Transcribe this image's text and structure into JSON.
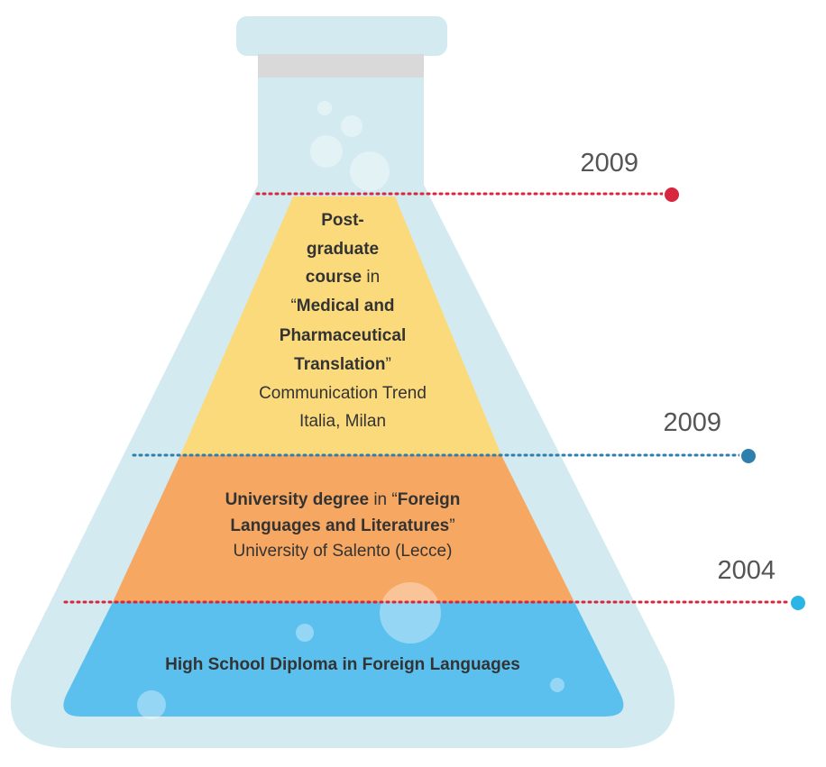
{
  "levels": [
    {
      "year": "2009",
      "lines": [
        [
          {
            "text": "Post-",
            "bold": true
          }
        ],
        [
          {
            "text": "graduate",
            "bold": true
          }
        ],
        [
          {
            "text": "course",
            "bold": true
          },
          {
            "text": " in",
            "bold": false
          }
        ],
        [
          {
            "text": "“",
            "bold": false
          },
          {
            "text": "Medical and",
            "bold": true
          }
        ],
        [
          {
            "text": "Pharmaceutical",
            "bold": true
          }
        ],
        [
          {
            "text": "Translation",
            "bold": true
          },
          {
            "text": "”",
            "bold": false
          }
        ],
        [
          {
            "text": "Communication Trend",
            "bold": false
          }
        ],
        [
          {
            "text": "Italia, Milan",
            "bold": false
          }
        ]
      ]
    },
    {
      "year": "2009",
      "lines": [
        [
          {
            "text": "University degree",
            "bold": true
          },
          {
            "text": " in “",
            "bold": false
          },
          {
            "text": "Foreign",
            "bold": true
          }
        ],
        [
          {
            "text": "Languages and Literatures",
            "bold": true
          },
          {
            "text": "”",
            "bold": false
          }
        ],
        [
          {
            "text": "University of Salento (Lecce)",
            "bold": false
          }
        ]
      ]
    },
    {
      "year": "2004",
      "lines": [
        [
          {
            "text": "High School Diploma in Foreign Languages",
            "bold": true
          }
        ]
      ]
    }
  ]
}
